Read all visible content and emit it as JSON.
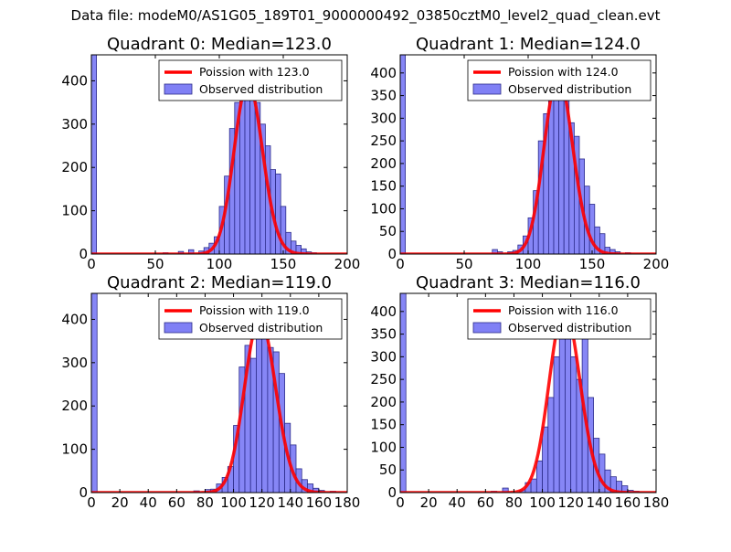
{
  "figure": {
    "suptitle": "Data file: modeM0/AS1G05_189T01_9000000492_03850cztM0_level2_quad_clean.evt"
  },
  "colors": {
    "bar_fill": "#8080f5",
    "bar_edge": "#2b2b8a",
    "curve": "#ff0000",
    "axis": "#000000",
    "legend_edge": "#000000"
  },
  "chart_data": [
    {
      "type": "bar",
      "title": "Quadrant 0: Median=123.0",
      "xlim": [
        0,
        200
      ],
      "ylim": [
        0,
        460
      ],
      "xticks": [
        0,
        50,
        100,
        150,
        200
      ],
      "yticks": [
        0,
        100,
        200,
        300,
        400
      ],
      "xlabel": "",
      "ylabel": "",
      "legend": {
        "position": "top-right",
        "entries": [
          "Poission with 123.0",
          "Observed distribution"
        ]
      },
      "bin_width": 4,
      "bins": [
        [
          0,
          460
        ],
        [
          56,
          3
        ],
        [
          68,
          6
        ],
        [
          76,
          10
        ],
        [
          84,
          7
        ],
        [
          88,
          15
        ],
        [
          92,
          25
        ],
        [
          96,
          40
        ],
        [
          100,
          110
        ],
        [
          104,
          180
        ],
        [
          108,
          290
        ],
        [
          112,
          350
        ],
        [
          116,
          400
        ],
        [
          120,
          440
        ],
        [
          124,
          420
        ],
        [
          128,
          350
        ],
        [
          132,
          300
        ],
        [
          136,
          250
        ],
        [
          140,
          195
        ],
        [
          144,
          185
        ],
        [
          148,
          110
        ],
        [
          152,
          50
        ],
        [
          156,
          30
        ],
        [
          160,
          20
        ],
        [
          164,
          12
        ],
        [
          168,
          5
        ],
        [
          172,
          3
        ]
      ],
      "poisson_mean": 123.0,
      "poisson_scale": 11000
    },
    {
      "type": "bar",
      "title": "Quadrant 1: Median=124.0",
      "xlim": [
        0,
        200
      ],
      "ylim": [
        0,
        440
      ],
      "xticks": [
        0,
        50,
        100,
        150,
        200
      ],
      "yticks": [
        0,
        50,
        100,
        150,
        200,
        250,
        300,
        350,
        400
      ],
      "xlabel": "",
      "ylabel": "",
      "legend": {
        "position": "top-right",
        "entries": [
          "Poission with 124.0",
          "Observed distribution"
        ]
      },
      "bin_width": 4,
      "bins": [
        [
          0,
          440
        ],
        [
          72,
          10
        ],
        [
          76,
          5
        ],
        [
          84,
          5
        ],
        [
          88,
          8
        ],
        [
          92,
          20
        ],
        [
          96,
          40
        ],
        [
          100,
          80
        ],
        [
          104,
          140
        ],
        [
          108,
          250
        ],
        [
          112,
          310
        ],
        [
          116,
          390
        ],
        [
          120,
          420
        ],
        [
          124,
          405
        ],
        [
          128,
          360
        ],
        [
          132,
          290
        ],
        [
          136,
          260
        ],
        [
          140,
          210
        ],
        [
          144,
          150
        ],
        [
          148,
          110
        ],
        [
          152,
          60
        ],
        [
          156,
          45
        ],
        [
          160,
          15
        ],
        [
          164,
          10
        ],
        [
          168,
          5
        ],
        [
          176,
          3
        ]
      ],
      "poisson_mean": 124.0,
      "poisson_scale": 11000
    },
    {
      "type": "bar",
      "title": "Quadrant 2: Median=119.0",
      "xlim": [
        0,
        180
      ],
      "ylim": [
        0,
        460
      ],
      "xticks": [
        0,
        20,
        40,
        60,
        80,
        100,
        120,
        140,
        160,
        180
      ],
      "yticks": [
        0,
        100,
        200,
        300,
        400
      ],
      "xlabel": "",
      "ylabel": "",
      "legend": {
        "position": "top-right",
        "entries": [
          "Poission with 119.0",
          "Observed distribution"
        ]
      },
      "bin_width": 4,
      "bins": [
        [
          0,
          460
        ],
        [
          72,
          4
        ],
        [
          80,
          7
        ],
        [
          84,
          8
        ],
        [
          88,
          20
        ],
        [
          92,
          35
        ],
        [
          96,
          60
        ],
        [
          100,
          155
        ],
        [
          104,
          290
        ],
        [
          108,
          340
        ],
        [
          112,
          310
        ],
        [
          116,
          425
        ],
        [
          120,
          390
        ],
        [
          124,
          335
        ],
        [
          128,
          325
        ],
        [
          132,
          275
        ],
        [
          136,
          160
        ],
        [
          140,
          110
        ],
        [
          144,
          55
        ],
        [
          148,
          30
        ],
        [
          152,
          20
        ],
        [
          156,
          10
        ],
        [
          160,
          5
        ],
        [
          168,
          3
        ]
      ],
      "poisson_mean": 119.0,
      "poisson_scale": 11000
    },
    {
      "type": "bar",
      "title": "Quadrant 3: Median=116.0",
      "xlim": [
        0,
        180
      ],
      "ylim": [
        0,
        440
      ],
      "xticks": [
        0,
        20,
        40,
        60,
        80,
        100,
        120,
        140,
        160,
        180
      ],
      "yticks": [
        0,
        50,
        100,
        150,
        200,
        250,
        300,
        350,
        400
      ],
      "xlabel": "",
      "ylabel": "",
      "legend": {
        "position": "top-right",
        "entries": [
          "Poission with 116.0",
          "Observed distribution"
        ]
      },
      "bin_width": 4,
      "bins": [
        [
          0,
          440
        ],
        [
          64,
          3
        ],
        [
          72,
          10
        ],
        [
          84,
          6
        ],
        [
          88,
          22
        ],
        [
          92,
          30
        ],
        [
          96,
          70
        ],
        [
          100,
          145
        ],
        [
          104,
          210
        ],
        [
          108,
          300
        ],
        [
          112,
          400
        ],
        [
          116,
          410
        ],
        [
          120,
          300
        ],
        [
          124,
          250
        ],
        [
          128,
          345
        ],
        [
          132,
          210
        ],
        [
          136,
          120
        ],
        [
          140,
          85
        ],
        [
          144,
          50
        ],
        [
          148,
          35
        ],
        [
          152,
          25
        ],
        [
          156,
          15
        ],
        [
          160,
          5
        ],
        [
          164,
          3
        ]
      ],
      "poisson_mean": 116.0,
      "poisson_scale": 11000
    }
  ]
}
